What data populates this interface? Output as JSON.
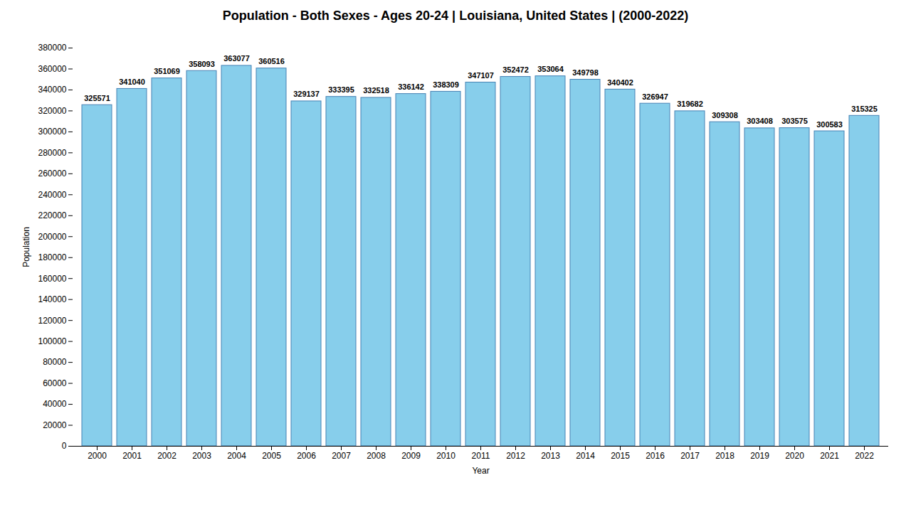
{
  "chart_data": {
    "type": "bar",
    "title": "Population - Both Sexes - Ages 20-24 | Louisiana, United States |  (2000-2022)",
    "x_label": "Year",
    "y_label": "Population",
    "categories": [
      "2000",
      "2001",
      "2002",
      "2003",
      "2004",
      "2005",
      "2006",
      "2007",
      "2008",
      "2009",
      "2010",
      "2011",
      "2012",
      "2013",
      "2014",
      "2015",
      "2016",
      "2017",
      "2018",
      "2019",
      "2020",
      "2021",
      "2022"
    ],
    "values": [
      325571,
      341040,
      351069,
      358093,
      363077,
      360516,
      329137,
      333395,
      332518,
      336142,
      338309,
      347107,
      352472,
      353064,
      349798,
      340402,
      326947,
      319682,
      309308,
      303408,
      303575,
      300583,
      315325
    ],
    "color": "#87CEEB",
    "ylim": [
      0,
      380000
    ],
    "yticks": [
      0,
      20000,
      40000,
      60000,
      80000,
      100000,
      120000,
      140000,
      160000,
      180000,
      200000,
      220000,
      240000,
      260000,
      280000,
      300000,
      320000,
      340000,
      360000,
      380000
    ],
    "data_labels": true,
    "grid": false
  }
}
